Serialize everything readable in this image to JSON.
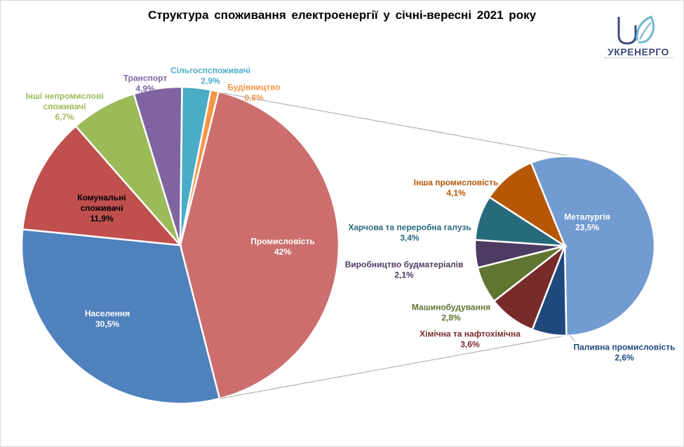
{
  "title": "Структура споживання електроенергії у січні-вересні 2021 року",
  "logo": {
    "name": "УКРЕНЕРГО",
    "icon": "ukrenergo-logo"
  },
  "chart_data": [
    {
      "type": "pie",
      "slices": [
        {
          "label": "Промисловість",
          "value": 42,
          "display": "42%",
          "color": "#cd6e6e",
          "label_color": "#ffffff"
        },
        {
          "label": "Населення",
          "value": 30.5,
          "display": "30,5%",
          "color": "#4f81bd",
          "label_color": "#ffffff"
        },
        {
          "label": "Комунальні споживачі",
          "value": 11.9,
          "display": "11,9%",
          "color": "#c0504d",
          "label_color": "#000000"
        },
        {
          "label": "Інші непромислові споживачі",
          "value": 6.7,
          "display": "6,7%",
          "color": "#9bbb59",
          "label_color": "#9bbb59"
        },
        {
          "label": "Транспорт",
          "value": 4.9,
          "display": "4,9%",
          "color": "#8064a2",
          "label_color": "#8064a2"
        },
        {
          "label": "Сільгоспспоживачі",
          "value": 2.9,
          "display": "2,9%",
          "color": "#4bacc6",
          "label_color": "#4bacc6"
        },
        {
          "label": "Будівництво",
          "value": 0.8,
          "display": "0,8%",
          "color": "#f79646",
          "label_color": "#f79646"
        }
      ]
    },
    {
      "type": "pie",
      "slices": [
        {
          "label": "Металургія",
          "value": 23.5,
          "display": "23,5%",
          "color": "#729bd1",
          "label_color": "#ffffff"
        },
        {
          "label": "Паливна промисловість",
          "value": 2.6,
          "display": "2,6%",
          "color": "#1f497d",
          "label_color": "#1f497d"
        },
        {
          "label": "Хімічна та нафтохімічна",
          "value": 3.6,
          "display": "3,6%",
          "color": "#772c2a",
          "label_color": "#772c2a"
        },
        {
          "label": "Машинобудування",
          "value": 2.8,
          "display": "2,8%",
          "color": "#5f7530",
          "label_color": "#5f7530"
        },
        {
          "label": "Виробництво будматеріалів",
          "value": 2.1,
          "display": "2,1%",
          "color": "#4d3b62",
          "label_color": "#4d3b62"
        },
        {
          "label": "Харчова та переробна галузь",
          "value": 3.4,
          "display": "3,4%",
          "color": "#276a7c",
          "label_color": "#276a7c"
        },
        {
          "label": "Інша промисловість",
          "value": 4.1,
          "display": "4,1%",
          "color": "#b65708",
          "label_color": "#b65708"
        }
      ]
    }
  ]
}
